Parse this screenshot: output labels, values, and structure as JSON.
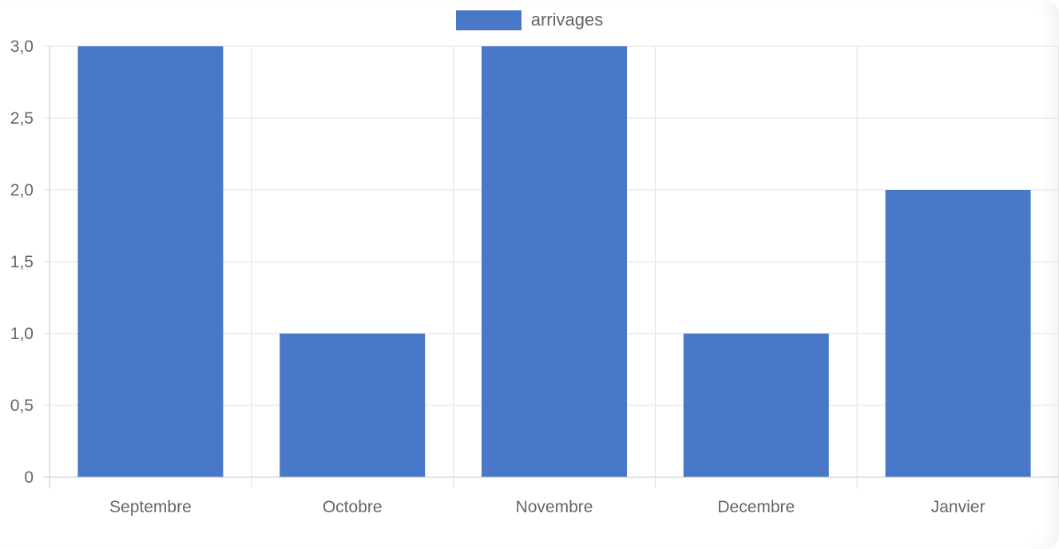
{
  "chart_data": {
    "type": "bar",
    "categories": [
      "Septembre",
      "Octobre",
      "Novembre",
      "Decembre",
      "Janvier"
    ],
    "series": [
      {
        "name": "arrivages",
        "values": [
          3,
          1,
          3,
          1,
          2
        ],
        "color": "#4a78c8"
      }
    ],
    "ylim": [
      0,
      3
    ],
    "yticks": [
      0,
      0.5,
      1.0,
      1.5,
      2.0,
      2.5,
      3.0
    ],
    "ytick_labels": [
      "0",
      "0,5",
      "1,0",
      "1,5",
      "2,0",
      "2,5",
      "3,0"
    ],
    "grid": true,
    "legend_position": "top-center",
    "title": "",
    "xlabel": "",
    "ylabel": ""
  },
  "colors": {
    "bar": "#4a78c8",
    "grid": "#e1e1e1",
    "axis": "#c8c8c8",
    "text": "#666666"
  }
}
